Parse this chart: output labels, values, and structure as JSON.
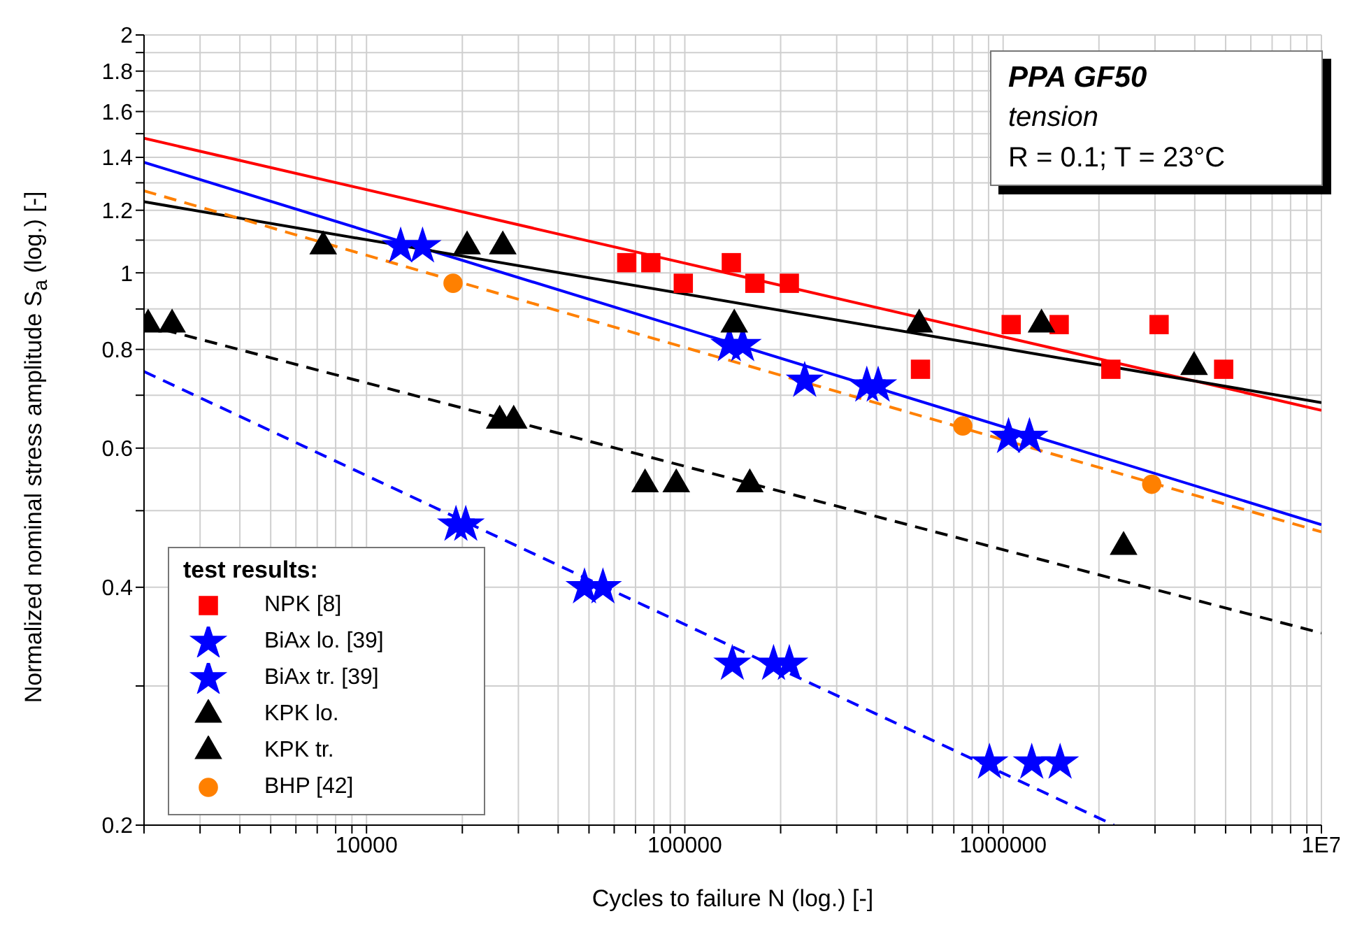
{
  "chart_data": {
    "type": "scatter",
    "xlabel": "Cycles to failure N (log.) [-]",
    "ylabel": "Normalized nominal stress amplitude S$_{a}$ (log.) [-]",
    "legend_title": "test results:",
    "legend": "bottom left",
    "log": "xy",
    "grid": true,
    "xlim": [
      2000,
      10000000
    ],
    "ylim": [
      0.2,
      2
    ],
    "xticks": [
      {
        "value": 2000,
        "label": null
      },
      {
        "value": 3000,
        "label": null
      },
      {
        "value": 4000,
        "label": null
      },
      {
        "value": 5000,
        "label": null
      },
      {
        "value": 6000,
        "label": null
      },
      {
        "value": 7000,
        "label": null
      },
      {
        "value": 8000,
        "label": null
      },
      {
        "value": 9000,
        "label": null
      },
      10000,
      {
        "value": 20000,
        "label": null
      },
      {
        "value": 30000,
        "label": null
      },
      {
        "value": 40000,
        "label": null
      },
      {
        "value": 50000,
        "label": null
      },
      {
        "value": 60000,
        "label": null
      },
      {
        "value": 70000,
        "label": null
      },
      {
        "value": 80000,
        "label": null
      },
      {
        "value": 90000,
        "label": null
      },
      100000,
      {
        "value": 200000,
        "label": null
      },
      {
        "value": 300000,
        "label": null
      },
      {
        "value": 400000,
        "label": null
      },
      {
        "value": 500000,
        "label": null
      },
      {
        "value": 600000,
        "label": null
      },
      {
        "value": 700000,
        "label": null
      },
      {
        "value": 800000,
        "label": null
      },
      {
        "value": 900000,
        "label": null
      },
      1000000,
      {
        "value": 2000000,
        "label": null
      },
      {
        "value": 3000000,
        "label": null
      },
      {
        "value": 4000000,
        "label": null
      },
      {
        "value": 5000000,
        "label": null
      },
      {
        "value": 6000000,
        "label": null
      },
      {
        "value": 7000000,
        "label": null
      },
      {
        "value": 8000000,
        "label": null
      },
      {
        "value": 9000000,
        "label": null
      },
      {
        "value": 10000000,
        "label": "1E7"
      }
    ],
    "yticks": [
      0.2,
      {
        "value": 0.3,
        "label": null
      },
      0.4,
      {
        "value": 0.5,
        "label": null
      },
      0.6,
      {
        "value": 0.7,
        "label": null
      },
      0.8,
      {
        "value": 0.9,
        "label": null
      },
      1,
      {
        "value": 1.1,
        "label": null
      },
      1.2,
      {
        "value": 1.3,
        "label": null
      },
      1.4,
      {
        "value": 1.5,
        "label": null
      },
      1.6,
      {
        "value": 1.7,
        "label": null
      },
      1.8,
      {
        "value": 1.9,
        "label": null
      },
      2
    ],
    "annotations": [
      "PPA GF50",
      "tension",
      "R = 0.1; T = 23°C"
    ],
    "series": [
      {
        "type": "line",
        "color": "#ff0000",
        "line_style": "solid",
        "marker": "none",
        "x": [
          2000,
          10000000
        ],
        "values": [
          1.48,
          0.67
        ]
      },
      {
        "type": "line",
        "color": "#0000ff",
        "line_style": "solid",
        "marker": "none",
        "x": [
          2000,
          10000000
        ],
        "values": [
          1.38,
          0.48
        ]
      },
      {
        "type": "line",
        "color": "#000000",
        "line_style": "solid",
        "marker": "none",
        "x": [
          2000,
          10000000
        ],
        "values": [
          1.23,
          0.685
        ]
      },
      {
        "type": "line",
        "color": "#ff8000",
        "line_style": "dashed",
        "marker": "none",
        "x": [
          2000,
          10000000
        ],
        "values": [
          1.27,
          0.47
        ]
      },
      {
        "type": "line",
        "color": "#000000",
        "line_style": "dashed",
        "marker": "none",
        "x": [
          2000,
          10000000
        ],
        "values": [
          0.86,
          0.35
        ]
      },
      {
        "type": "line",
        "color": "#0000ff",
        "line_style": "dashed",
        "marker": "none",
        "x": [
          2000,
          2230000
        ],
        "values": [
          0.75,
          0.2
        ]
      },
      {
        "name": "NPK [8]",
        "color": "#ff0000",
        "marker": "square",
        "x": [
          65700,
          78200,
          98900,
          140000,
          166000,
          213000,
          550000,
          1060000,
          1500000,
          2180000,
          3090000,
          4930000
        ],
        "values": [
          1.03,
          1.03,
          0.97,
          1.03,
          0.97,
          0.97,
          0.755,
          0.86,
          0.86,
          0.755,
          0.86,
          0.755
        ]
      },
      {
        "name": "BiAx lo. [39]",
        "color": "#0000ff",
        "marker": "star",
        "x": [
          12800,
          15000,
          138000,
          152000,
          238000,
          373000,
          405000,
          1040000,
          1210000
        ],
        "values": [
          1.08,
          1.08,
          0.81,
          0.81,
          0.73,
          0.72,
          0.72,
          0.62,
          0.62
        ]
      },
      {
        "name": "BiAx tr. [39]",
        "color": "#0000ff",
        "marker": "star",
        "x": [
          19100,
          20500,
          48400,
          55300,
          141000,
          190000,
          213000,
          906000,
          1230000,
          1510000
        ],
        "values": [
          0.48,
          0.48,
          0.4,
          0.4,
          0.32,
          0.32,
          0.32,
          0.24,
          0.24,
          0.24
        ]
      },
      {
        "name": "KPK lo.",
        "color": "#000000",
        "marker": "triangle",
        "x": [
          7310,
          20700,
          26800,
          143000,
          545000,
          1320000,
          3980000
        ],
        "values": [
          1.08,
          1.08,
          1.08,
          0.86,
          0.86,
          0.86,
          0.76
        ]
      },
      {
        "name": "KPK tr.",
        "color": "#000000",
        "marker": "triangle",
        "x": [
          2060,
          2450,
          26200,
          29000,
          75000,
          94000,
          160000,
          2390000
        ],
        "values": [
          0.86,
          0.86,
          0.65,
          0.65,
          0.54,
          0.54,
          0.54,
          0.45
        ]
      },
      {
        "name": "BHP [42]",
        "color": "#ff8000",
        "marker": "circle",
        "x": [
          18700,
          747000,
          2930000
        ],
        "values": [
          0.97,
          0.64,
          0.54
        ]
      }
    ]
  }
}
